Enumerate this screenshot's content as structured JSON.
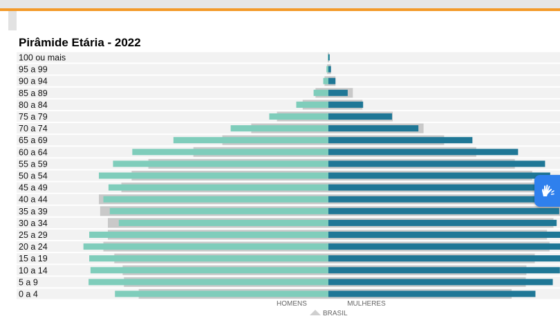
{
  "colors": {
    "accent": "#f39a2a",
    "men": "#7fcdbb",
    "women": "#1f7796",
    "brasil": "#c9c9c9",
    "stripe": "#f2f2f2",
    "widget": "#2f80ed"
  },
  "accessibility_widget": {
    "icon": "hands-sign-language-icon"
  },
  "chart_data": {
    "type": "bar",
    "subtype": "population-pyramid",
    "title": "Pirâmide Etária - 2022",
    "xlabel_left": "HOMENS",
    "xlabel_right": "MULHERES",
    "legend": [
      {
        "name": "BRASIL",
        "marker": "triangle"
      }
    ],
    "categories": [
      "0 a 4",
      "5 a 9",
      "10 a 14",
      "15 a 19",
      "20 a 24",
      "25 a 29",
      "30 a 34",
      "35 a 39",
      "40 a 44",
      "45 a 49",
      "50 a 54",
      "55 a 59",
      "60 a 64",
      "65 a 69",
      "70 a 74",
      "75 a 79",
      "80 a 84",
      "85 a 89",
      "90 a 94",
      "95 a 99",
      "100 ou mais"
    ],
    "series": [
      {
        "name": "HOMENS",
        "side": "left",
        "values": [
          3.32,
          3.73,
          3.7,
          3.72,
          3.81,
          3.72,
          3.26,
          3.4,
          3.5,
          3.42,
          3.57,
          3.35,
          3.05,
          2.41,
          1.52,
          0.92,
          0.5,
          0.23,
          0.08,
          0.03,
          0.01
        ]
      },
      {
        "name": "MULHERES",
        "side": "right",
        "values": [
          3.22,
          3.49,
          3.6,
          3.67,
          3.67,
          3.7,
          3.55,
          3.59,
          3.5,
          3.43,
          3.45,
          3.37,
          2.95,
          2.24,
          1.4,
          0.99,
          0.54,
          0.3,
          0.11,
          0.04,
          0.02
        ]
      },
      {
        "name": "BRASIL",
        "role": "reference",
        "left_values": [
          2.95,
          3.18,
          3.2,
          3.33,
          3.5,
          3.43,
          3.43,
          3.55,
          3.57,
          3.22,
          3.06,
          2.8,
          2.1,
          1.65,
          1.2,
          0.8,
          0.4,
          0.2,
          0.06,
          0.02,
          0.01
        ],
        "right_values": [
          2.85,
          3.07,
          3.08,
          3.21,
          3.44,
          3.4,
          3.5,
          3.63,
          3.62,
          3.27,
          3.17,
          2.9,
          2.3,
          1.8,
          1.48,
          1.0,
          0.53,
          0.38,
          0.11,
          0.04,
          0.01
        ]
      }
    ],
    "xlim": [
      -3.81,
      3.81
    ],
    "grid": false
  }
}
